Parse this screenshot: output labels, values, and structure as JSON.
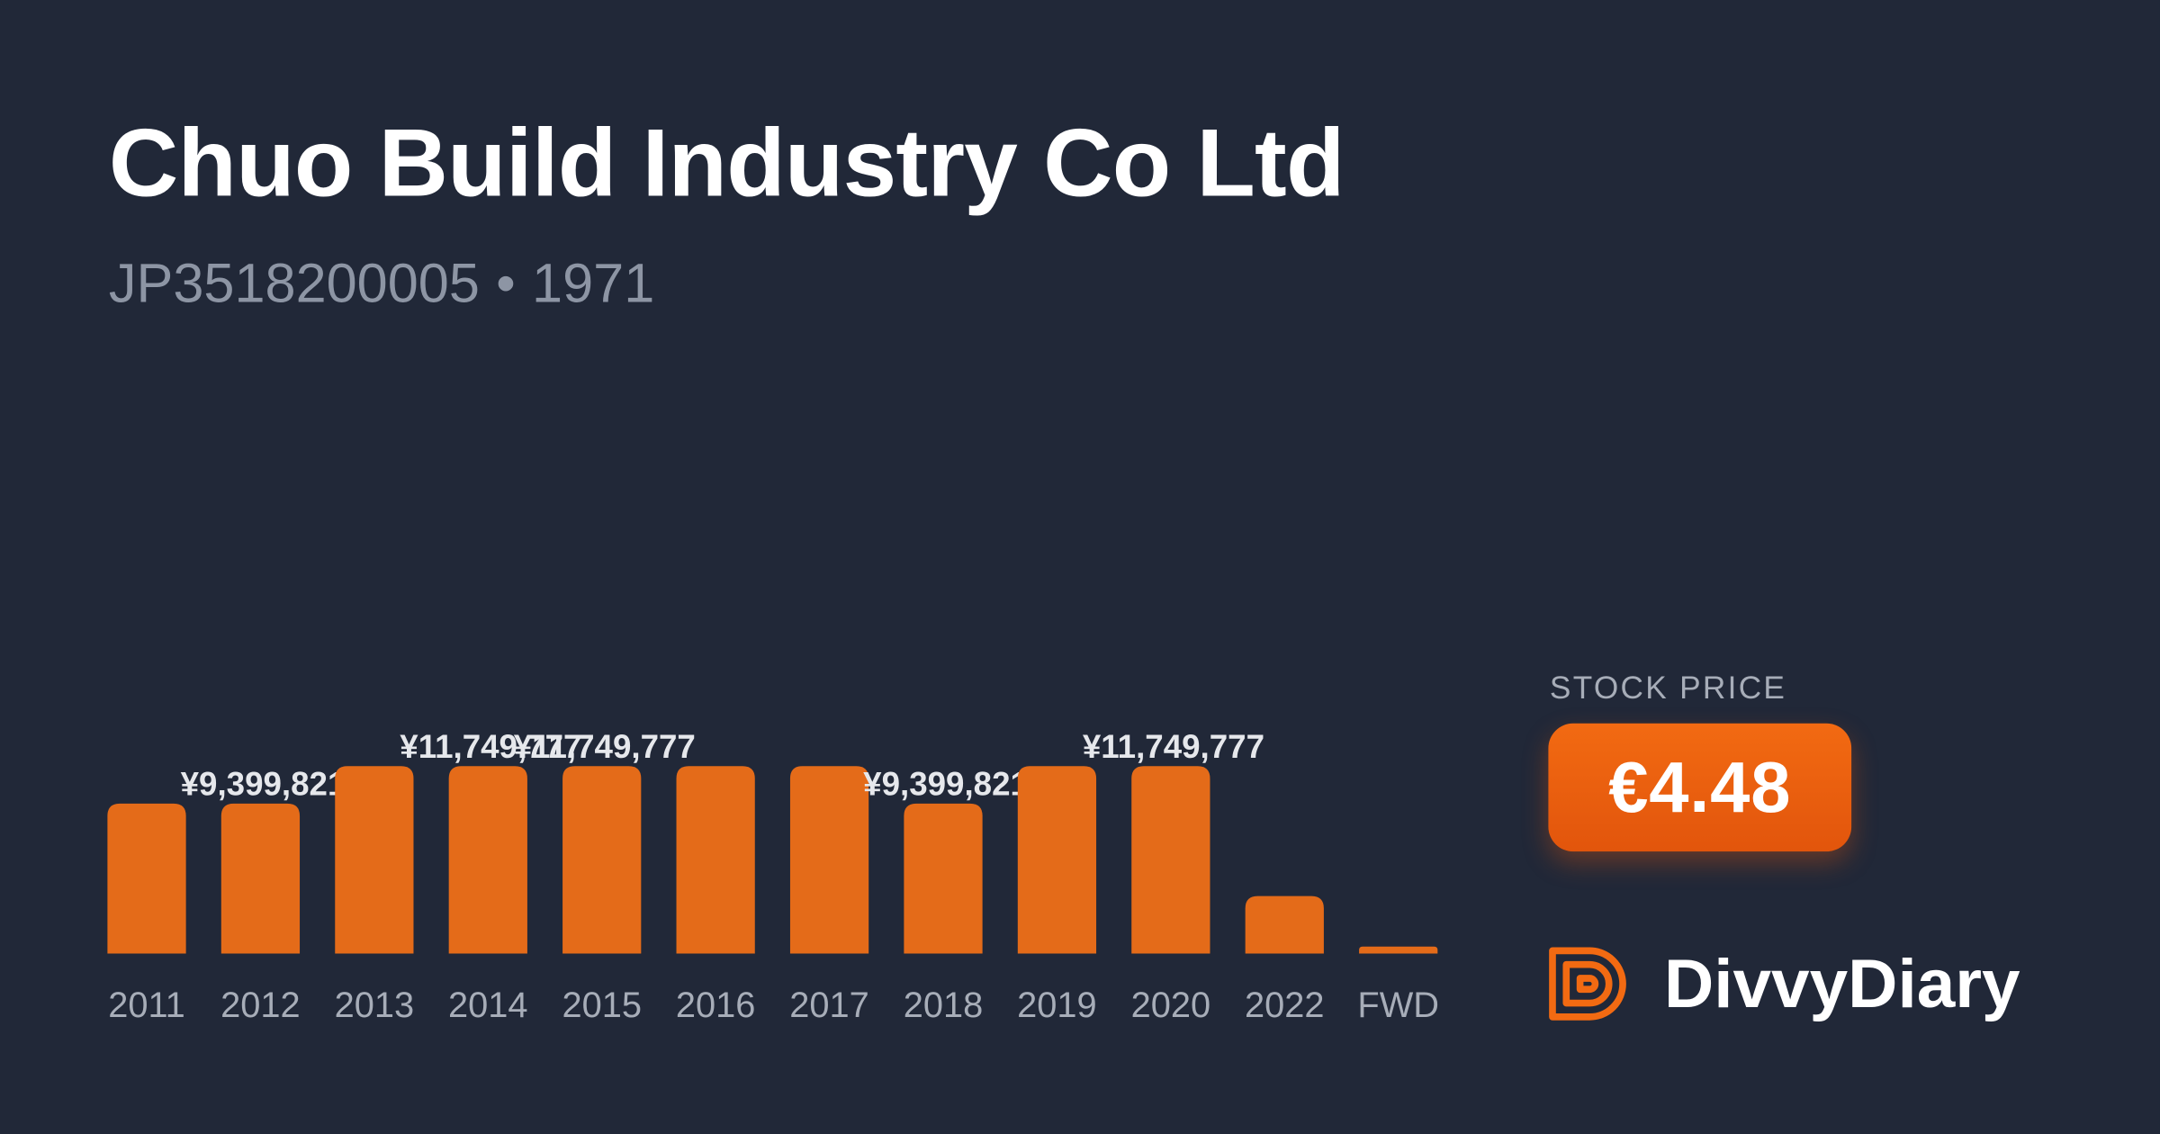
{
  "header": {
    "title": "Chuo Build Industry Co Ltd",
    "isin": "JP3518200005",
    "separator": "•",
    "ticker": "1971"
  },
  "price": {
    "caption": "STOCK PRICE",
    "value": "€4.48"
  },
  "brand": {
    "name": "DivvyDiary",
    "logo_icon": "divvydiary-logo-icon"
  },
  "colors": {
    "background": "#212838",
    "bar": "#e46b19",
    "badge": "#ec5f0f",
    "muted_text": "#a7adb8"
  },
  "chart_data": {
    "type": "bar",
    "title": "",
    "xlabel": "",
    "ylabel": "",
    "categories": [
      "2011",
      "2012",
      "2013",
      "2014",
      "2015",
      "2016",
      "2017",
      "2018",
      "2019",
      "2020",
      "2022",
      "FWD"
    ],
    "values": [
      9399821,
      9399821,
      11749777,
      11749777,
      11749777,
      11749777,
      11749777,
      9399821,
      11749777,
      11749777,
      3600000,
      300000
    ],
    "data_labels": [
      "",
      "¥9,399,821",
      "",
      "¥11,749,777",
      "¥11,749,777",
      "",
      "",
      "¥9,399,821",
      "",
      "¥11,749,777",
      "",
      ""
    ],
    "ylim": [
      0,
      11749777
    ],
    "grid": false,
    "legend": "none"
  }
}
